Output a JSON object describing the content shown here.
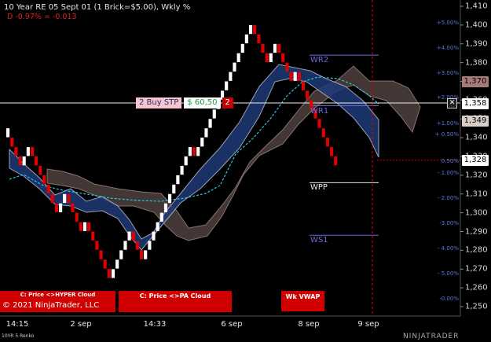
{
  "header": {
    "title": "10 Year RE 05 Sept 01 (1 Brick=$5.00), Wkly %",
    "change": "D -0.97% = -0.013"
  },
  "colors": {
    "background": "#000000",
    "up_brick": "#ffffff",
    "down_brick": "#e00000",
    "cloud_blue": "#1e3a78",
    "cloud_brown": "#7a6562",
    "vwap_line": "#28c8dc",
    "panel_red": "#d00000",
    "pct_label": "#5a78e6",
    "level_blue": "#6a6ad8"
  },
  "chart_data": {
    "type": "renko",
    "brick_size": 5.0,
    "ylim": [
      1242,
      1412
    ],
    "y_ticks": [
      "1,410",
      "1,400",
      "1,390",
      "1,380",
      "1,370",
      "1,360",
      "1,350",
      "1,340",
      "1,330",
      "1,320",
      "1,310",
      "1,300",
      "1,290",
      "1,280",
      "1,270",
      "1,260",
      "1,250"
    ],
    "x_ticks": [
      "14:15",
      "2 sep",
      "14:33",
      "6 sep",
      "8 sep",
      "9 sep"
    ],
    "last_price": "1,328",
    "price_tags": [
      {
        "label": "1,370",
        "bg": "#a87a77",
        "fg": "#000000"
      },
      {
        "label": "1,358",
        "bg": "#ffffff",
        "fg": "#000000"
      },
      {
        "label": "1,349",
        "bg": "#d8cfc8",
        "fg": "#000000"
      },
      {
        "label": "1,328",
        "bg": "#ffffff",
        "fg": "#000000"
      }
    ],
    "pct_labels": [
      "+5.00%",
      "+4.00%",
      "+3.00%",
      "+2.00%",
      "+1.00%",
      "+ 0.50%",
      "0.50%",
      "- 1.00%",
      "- 2.00%",
      "-3.00%",
      "- 4.00%",
      "- 5.00%",
      "-0.00%"
    ],
    "pivot_levels": [
      {
        "name": "WR2",
        "value": 1384
      },
      {
        "name": "WR1",
        "value": 1357
      },
      {
        "name": "WPP",
        "value": 1316
      },
      {
        "name": "WS1",
        "value": 1288
      }
    ],
    "order": {
      "label": "2 Buy STP",
      "price": "$ 60,50",
      "qty": "2"
    },
    "bricks": [
      {
        "dir": "up",
        "n": 0
      },
      {
        "dir": "down",
        "n": 3
      },
      {
        "dir": "up",
        "n": 2
      },
      {
        "dir": "down",
        "n": 7
      },
      {
        "dir": "up",
        "n": 2
      },
      {
        "dir": "down",
        "n": 4
      },
      {
        "dir": "up",
        "n": 1
      },
      {
        "dir": "down",
        "n": 6
      },
      {
        "dir": "up",
        "n": 5
      },
      {
        "dir": "down",
        "n": 3
      },
      {
        "dir": "up",
        "n": 12
      },
      {
        "dir": "down",
        "n": 1
      },
      {
        "dir": "up",
        "n": 14
      },
      {
        "dir": "down",
        "n": 4
      },
      {
        "dir": "up",
        "n": 2
      },
      {
        "dir": "down",
        "n": 4
      },
      {
        "dir": "up",
        "n": 1
      },
      {
        "dir": "down",
        "n": 10
      }
    ]
  },
  "panels": {
    "hyper_cloud": "C: Price <>HYPER Cloud",
    "pa_cloud": "C: Price <>PA Cloud",
    "wk_vwap": "Wk VWAP"
  },
  "footer": {
    "copyright": "© 2021 NinjaTrader, LLC",
    "brick_type": "10YR 5 Renko",
    "brand": "NINJATRADER"
  }
}
